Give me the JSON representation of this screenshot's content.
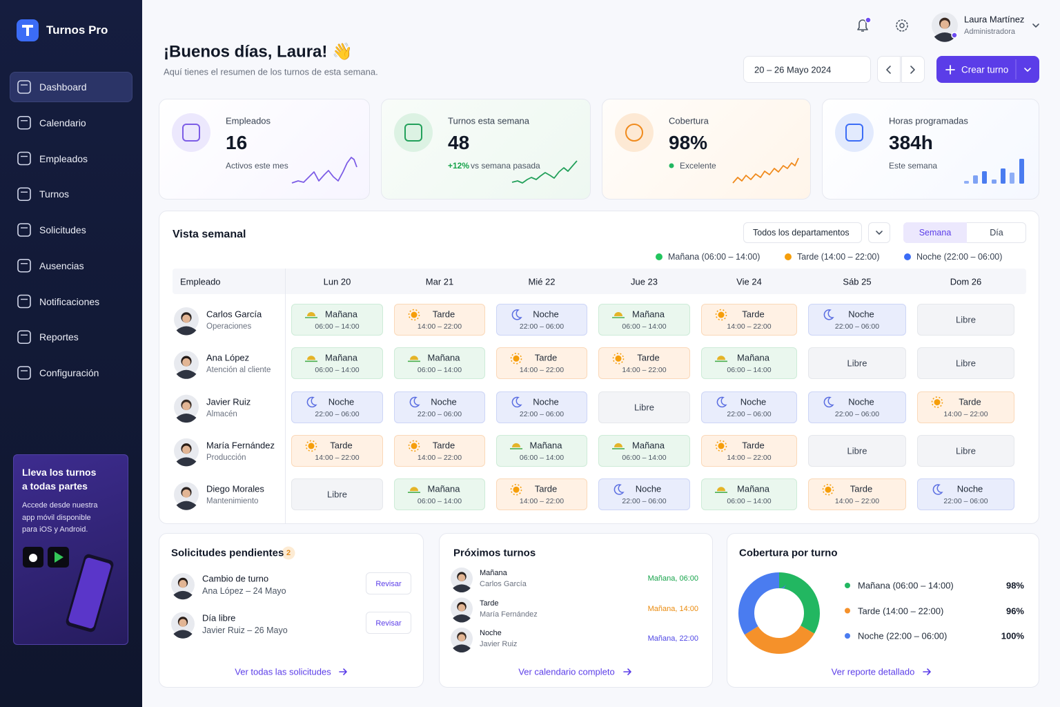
{
  "sidebar": {
    "brand": "Turnos Pro",
    "nav": [
      "Dashboard",
      "Calendario",
      "Empleados",
      "Turnos",
      "Solicitudes",
      "Ausencias",
      "Notificaciones",
      "Reportes",
      "Configuración"
    ],
    "promo": {
      "title": "Lleva los turnos a todas partes",
      "text": "Accede desde nuestra app móvil disponible para iOS y Android."
    }
  },
  "header": {
    "greeting": "¡Buenos días, Laura! 👋",
    "subtitle": "Aquí tienes el resumen de los turnos de esta semana.",
    "user": {
      "name": "Laura Martínez",
      "role": "Administradora"
    },
    "date_range": "20 – 26 Mayo 2024",
    "create_button": "Crear turno"
  },
  "stats": [
    {
      "label": "Empleados",
      "value": "16",
      "note": "Activos este mes"
    },
    {
      "label": "Turnos esta semana",
      "value": "48",
      "change": "+12%",
      "note": "vs semana pasada"
    },
    {
      "label": "Cobertura",
      "value": "98%",
      "note": "Excelente"
    },
    {
      "label": "Horas programadas",
      "value": "384h",
      "note": "Este semana"
    }
  ],
  "weekly": {
    "title": "Vista semanal",
    "department_filter": "Todos los departamentos",
    "view_toggle": [
      "Semana",
      "Día"
    ],
    "legend": [
      {
        "label": "Mañana (06:00 – 14:00)",
        "color": "#22c55e"
      },
      {
        "label": "Tarde (14:00 – 22:00)",
        "color": "#f59e0b"
      },
      {
        "label": "Noche (22:00 – 06:00)",
        "color": "#3b6cf6"
      }
    ],
    "shift_types": [
      {
        "name": "Mañana",
        "hours": "06:00 – 14:00"
      },
      {
        "name": "Tarde",
        "hours": "14:00 – 22:00"
      },
      {
        "name": "Noche",
        "hours": "22:00 – 06:00"
      }
    ],
    "columns": [
      "Empleado",
      "Lun 20",
      "Mar 21",
      "Mié 22",
      "Jue 23",
      "Vie 24",
      "Sáb 25",
      "Dom 26"
    ],
    "rows": [
      {
        "name": "Carlos García",
        "department": "Operaciones",
        "shifts": [
          "Mañana",
          "Tarde",
          "Noche",
          "Mañana",
          "Tarde",
          "Noche",
          "Libre"
        ]
      },
      {
        "name": "Ana López",
        "department": "Atención al cliente",
        "shifts": [
          "Mañana",
          "Mañana",
          "Tarde",
          "Tarde",
          "Mañana",
          "Libre",
          "Libre"
        ]
      },
      {
        "name": "Javier Ruiz",
        "department": "Almacén",
        "shifts": [
          "Noche",
          "Noche",
          "Noche",
          "Libre",
          "Noche",
          "Noche",
          "Tarde"
        ]
      },
      {
        "name": "María Fernández",
        "department": "Producción",
        "shifts": [
          "Tarde",
          "Tarde",
          "Mañana",
          "Mañana",
          "Tarde",
          "Libre",
          "Libre"
        ]
      },
      {
        "name": "Diego Morales",
        "department": "Mantenimiento",
        "shifts": [
          "Libre",
          "Mañana",
          "Tarde",
          "Noche",
          "Mañana",
          "Tarde",
          "Noche"
        ]
      }
    ]
  },
  "requests": {
    "title": "Solicitudes pendientes",
    "count": 2,
    "items": [
      {
        "title": "Cambio de turno",
        "detail": "Ana López – 24 Mayo",
        "action": "Revisar"
      },
      {
        "title": "Día libre",
        "detail": "Javier Ruiz – 26 Mayo",
        "action": "Revisar"
      }
    ],
    "link": "Ver todas las solicitudes"
  },
  "upcoming": {
    "title": "Próximos turnos",
    "items": [
      {
        "shift": "Mañana",
        "name": "Carlos García",
        "when": "Mañana, 06:00",
        "color": "#16a34a"
      },
      {
        "shift": "Tarde",
        "name": "María Fernández",
        "when": "Mañana, 14:00",
        "color": "#ea8a0c"
      },
      {
        "shift": "Noche",
        "name": "Javier Ruiz",
        "when": "Mañana, 22:00",
        "color": "#4f46e5"
      }
    ],
    "link": "Ver calendario completo"
  },
  "coverage": {
    "title": "Cobertura por turno",
    "items": [
      {
        "label": "Mañana (06:00 – 14:00)",
        "value": 98,
        "value_label": "98%",
        "color": "#22b761"
      },
      {
        "label": "Tarde (14:00 – 22:00)",
        "value": 96,
        "value_label": "96%",
        "color": "#f5912a"
      },
      {
        "label": "Noche (22:00 – 06:00)",
        "value": 100,
        "value_label": "100%",
        "color": "#4a7cf0"
      }
    ],
    "link": "Ver reporte detallado"
  }
}
